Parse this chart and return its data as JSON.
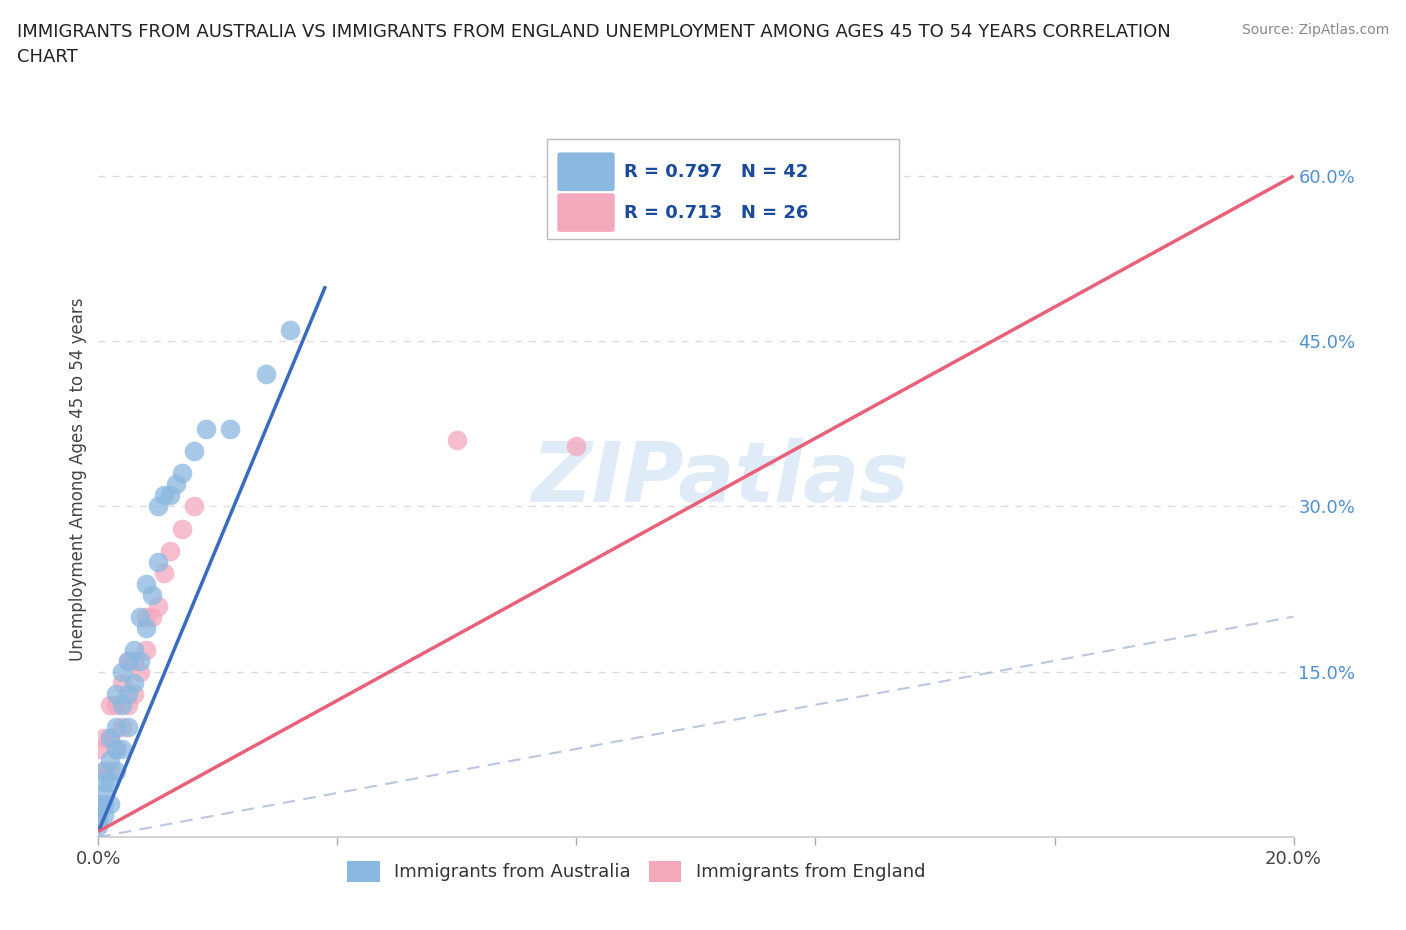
{
  "title": "IMMIGRANTS FROM AUSTRALIA VS IMMIGRANTS FROM ENGLAND UNEMPLOYMENT AMONG AGES 45 TO 54 YEARS CORRELATION\nCHART",
  "source": "Source: ZipAtlas.com",
  "ylabel": "Unemployment Among Ages 45 to 54 years",
  "xlim": [
    0.0,
    0.2
  ],
  "ylim": [
    0.0,
    0.65
  ],
  "x_ticks": [
    0.0,
    0.04,
    0.08,
    0.12,
    0.16,
    0.2
  ],
  "y_ticks_right": [
    0.15,
    0.3,
    0.45,
    0.6
  ],
  "y_tick_labels_right": [
    "15.0%",
    "30.0%",
    "45.0%",
    "60.0%"
  ],
  "watermark": "ZIPatlas",
  "R_australia": 0.797,
  "N_australia": 42,
  "R_england": 0.713,
  "N_england": 26,
  "color_australia": "#8ab8e0",
  "color_england": "#f4a8bc",
  "color_australia_line": "#3a6bbf",
  "color_england_line": "#e8607a",
  "background_color": "#ffffff",
  "grid_color": "#cccccc",
  "aus_x": [
    0.0,
    0.0,
    0.0,
    0.0,
    0.0,
    0.001,
    0.001,
    0.001,
    0.001,
    0.001,
    0.002,
    0.002,
    0.002,
    0.002,
    0.003,
    0.003,
    0.003,
    0.003,
    0.004,
    0.004,
    0.004,
    0.005,
    0.005,
    0.005,
    0.006,
    0.006,
    0.007,
    0.007,
    0.008,
    0.008,
    0.009,
    0.01,
    0.01,
    0.011,
    0.012,
    0.013,
    0.014,
    0.016,
    0.018,
    0.022,
    0.028,
    0.032
  ],
  "aus_y": [
    0.01,
    0.015,
    0.02,
    0.025,
    0.03,
    0.02,
    0.03,
    0.04,
    0.05,
    0.06,
    0.03,
    0.05,
    0.07,
    0.09,
    0.06,
    0.08,
    0.1,
    0.13,
    0.08,
    0.12,
    0.15,
    0.1,
    0.13,
    0.16,
    0.14,
    0.17,
    0.16,
    0.2,
    0.19,
    0.23,
    0.22,
    0.25,
    0.3,
    0.31,
    0.31,
    0.32,
    0.33,
    0.35,
    0.37,
    0.37,
    0.42,
    0.46
  ],
  "eng_x": [
    0.0,
    0.0,
    0.001,
    0.001,
    0.002,
    0.002,
    0.002,
    0.003,
    0.003,
    0.004,
    0.004,
    0.005,
    0.005,
    0.006,
    0.006,
    0.007,
    0.008,
    0.008,
    0.009,
    0.01,
    0.011,
    0.012,
    0.014,
    0.016,
    0.06,
    0.08
  ],
  "eng_y": [
    0.02,
    0.08,
    0.06,
    0.09,
    0.06,
    0.09,
    0.12,
    0.08,
    0.12,
    0.1,
    0.14,
    0.12,
    0.16,
    0.13,
    0.16,
    0.15,
    0.17,
    0.2,
    0.2,
    0.21,
    0.24,
    0.26,
    0.28,
    0.3,
    0.36,
    0.355
  ],
  "aus_line_x": [
    0.0,
    0.038
  ],
  "aus_line_y": [
    0.005,
    0.5
  ],
  "eng_line_x": [
    0.0,
    0.2
  ],
  "eng_line_y": [
    0.005,
    0.6
  ],
  "diag_line_x": [
    0.0,
    0.2
  ],
  "diag_line_y": [
    0.0,
    0.2
  ]
}
